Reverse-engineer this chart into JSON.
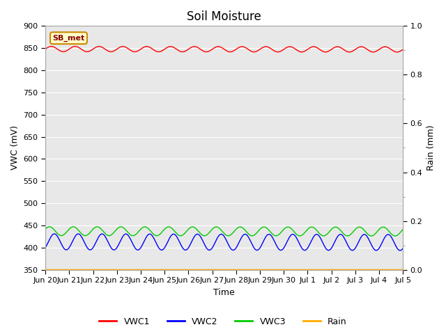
{
  "title": "Soil Moisture",
  "xlabel": "Time",
  "ylabel_left": "VWC (mV)",
  "ylabel_right": "Rain (mm)",
  "ylim_left": [
    350,
    900
  ],
  "ylim_right": [
    0.0,
    1.0
  ],
  "yticks_left": [
    350,
    400,
    450,
    500,
    550,
    600,
    650,
    700,
    750,
    800,
    850,
    900
  ],
  "yticks_right": [
    0.0,
    0.2,
    0.4,
    0.6,
    0.8,
    1.0
  ],
  "yticks_right_minor": [
    0.1,
    0.3,
    0.5,
    0.7,
    0.9
  ],
  "xtick_labels": [
    "Jun 20",
    "Jun 21",
    "Jun 22",
    "Jun 23",
    "Jun 24",
    "Jun 25",
    "Jun 26",
    "Jun 27",
    "Jun 28",
    "Jun 29",
    "Jun 30",
    "Jul 1",
    "Jul 2",
    "Jul 3",
    "Jul 4",
    "Jul 5"
  ],
  "n_points": 1500,
  "vwc1_base": 848,
  "vwc1_amplitude": 6,
  "vwc1_trend": -0.9,
  "vwc2_base": 413,
  "vwc2_amplitude": 18,
  "vwc2_trend": -1.5,
  "vwc3_base": 437,
  "vwc3_amplitude": 10,
  "vwc3_trend": -0.8,
  "rain_value": 350.0,
  "color_vwc1": "#ff0000",
  "color_vwc2": "#0000ff",
  "color_vwc3": "#00cc00",
  "color_rain": "#ffaa00",
  "bg_color": "#e8e8e8",
  "plot_bg": "#f0f0f0",
  "annotation_text": "SB_met",
  "annotation_bg": "#ffffcc",
  "annotation_border": "#cc8800",
  "annotation_text_color": "#880000",
  "legend_entries": [
    "VWC1",
    "VWC2",
    "VWC3",
    "Rain"
  ],
  "title_fontsize": 12,
  "axis_label_fontsize": 9,
  "tick_fontsize": 8
}
